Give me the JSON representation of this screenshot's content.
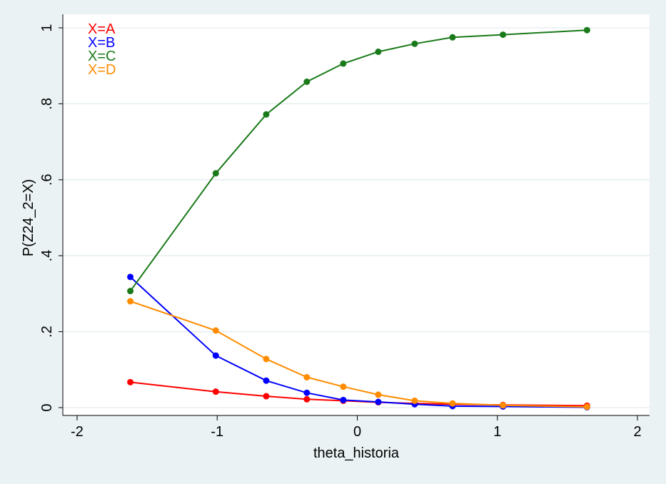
{
  "chart_data": {
    "type": "line",
    "title": "",
    "xlabel": "theta_historia",
    "ylabel": "P(Z24_2=X)",
    "xlim": [
      -2,
      2
    ],
    "ylim": [
      0,
      1
    ],
    "x_ticks": [
      -2,
      -1,
      0,
      1,
      2
    ],
    "x_tick_labels": [
      "-2",
      "-1",
      "0",
      "1",
      "2"
    ],
    "y_ticks": [
      0,
      0.2,
      0.4,
      0.6,
      0.8,
      1
    ],
    "y_tick_labels": [
      "0",
      ".2",
      ".4",
      ".6",
      ".8",
      "1"
    ],
    "grid": true,
    "legend_position": "top-left",
    "x": [
      -1.62,
      -1.01,
      -0.65,
      -0.36,
      -0.1,
      0.15,
      0.41,
      0.68,
      1.04,
      1.64
    ],
    "series": [
      {
        "name": "X=A",
        "color": "#ff0000",
        "values": [
          0.067,
          0.042,
          0.03,
          0.022,
          0.018,
          0.014,
          0.011,
          0.009,
          0.007,
          0.005
        ]
      },
      {
        "name": "X=B",
        "color": "#0000ff",
        "values": [
          0.344,
          0.137,
          0.071,
          0.039,
          0.02,
          0.015,
          0.009,
          0.004,
          0.003,
          0.001
        ]
      },
      {
        "name": "X=C",
        "color": "#1a7a1a",
        "values": [
          0.307,
          0.617,
          0.772,
          0.858,
          0.906,
          0.937,
          0.958,
          0.975,
          0.982,
          0.994
        ]
      },
      {
        "name": "X=D",
        "color": "#ff8c00",
        "values": [
          0.28,
          0.203,
          0.128,
          0.08,
          0.055,
          0.034,
          0.018,
          0.011,
          0.006,
          0.002
        ]
      }
    ]
  }
}
